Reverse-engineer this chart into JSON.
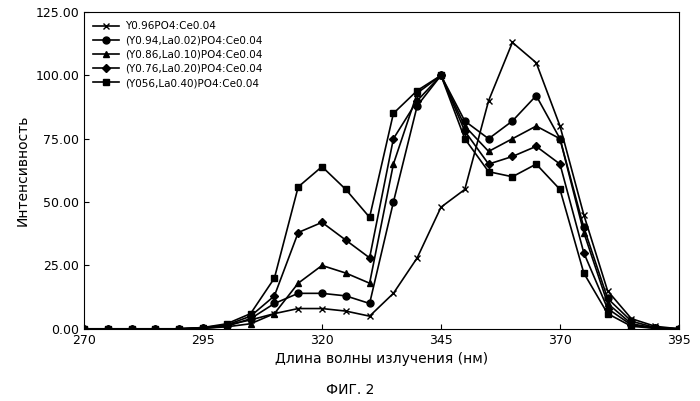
{
  "title": "ФИГ. 2",
  "xlabel": "Длина волны излучения (нм)",
  "ylabel": "Интенсивность",
  "xlim": [
    270,
    395
  ],
  "ylim": [
    0,
    125
  ],
  "yticks": [
    0,
    25.0,
    50.0,
    75.0,
    100.0,
    125.0
  ],
  "xticks": [
    270,
    295,
    320,
    345,
    370,
    395
  ],
  "series": [
    {
      "label": "Y0.96PO4:Ce0.04",
      "marker": "x",
      "color": "#000000",
      "linewidth": 1.2,
      "markersize": 5,
      "x": [
        270,
        275,
        280,
        285,
        290,
        295,
        300,
        305,
        310,
        315,
        320,
        325,
        330,
        335,
        340,
        345,
        350,
        355,
        360,
        365,
        370,
        375,
        380,
        385,
        390,
        395
      ],
      "y": [
        0,
        0,
        0,
        0,
        0,
        0.5,
        1.5,
        3.5,
        6,
        8,
        8,
        7,
        5,
        14,
        28,
        48,
        55,
        90,
        113,
        105,
        80,
        45,
        15,
        4,
        1,
        0
      ]
    },
    {
      "label": "(Y0.94,La0.02)PO4:Ce0.04",
      "marker": "o",
      "color": "#000000",
      "linewidth": 1.2,
      "markersize": 5,
      "x": [
        270,
        275,
        280,
        285,
        290,
        295,
        300,
        305,
        310,
        315,
        320,
        325,
        330,
        335,
        340,
        345,
        350,
        355,
        360,
        365,
        370,
        375,
        380,
        385,
        390,
        395
      ],
      "y": [
        0,
        0,
        0,
        0,
        0,
        0.2,
        1,
        4,
        10,
        14,
        14,
        13,
        10,
        50,
        88,
        100,
        82,
        75,
        82,
        92,
        75,
        40,
        12,
        3,
        0.5,
        0
      ]
    },
    {
      "label": "(Y0.86,La0.10)PO4:Ce0.04",
      "marker": "^",
      "color": "#000000",
      "linewidth": 1.2,
      "markersize": 5,
      "x": [
        270,
        275,
        280,
        285,
        290,
        295,
        300,
        305,
        310,
        315,
        320,
        325,
        330,
        335,
        340,
        345,
        350,
        355,
        360,
        365,
        370,
        375,
        380,
        385,
        390,
        395
      ],
      "y": [
        0,
        0,
        0,
        0,
        0,
        0.2,
        0.8,
        2,
        6,
        18,
        25,
        22,
        18,
        65,
        93,
        100,
        80,
        70,
        75,
        80,
        75,
        38,
        10,
        2,
        0.3,
        0
      ]
    },
    {
      "label": "(Y0.76,La0.20)PO4:Ce0.04",
      "marker": "D",
      "color": "#000000",
      "linewidth": 1.2,
      "markersize": 4,
      "x": [
        270,
        275,
        280,
        285,
        290,
        295,
        300,
        305,
        310,
        315,
        320,
        325,
        330,
        335,
        340,
        345,
        350,
        355,
        360,
        365,
        370,
        375,
        380,
        385,
        390,
        395
      ],
      "y": [
        0,
        0,
        0,
        0,
        0,
        0.3,
        1.5,
        5,
        13,
        38,
        42,
        35,
        28,
        75,
        90,
        100,
        78,
        65,
        68,
        72,
        65,
        30,
        8,
        1.5,
        0.2,
        0
      ]
    },
    {
      "label": "(Y056,La0.40)PO4:Ce0.04",
      "marker": "s",
      "color": "#000000",
      "linewidth": 1.2,
      "markersize": 5,
      "x": [
        270,
        275,
        280,
        285,
        290,
        295,
        300,
        305,
        310,
        315,
        320,
        325,
        330,
        335,
        340,
        345,
        350,
        355,
        360,
        365,
        370,
        375,
        380,
        385,
        390,
        395
      ],
      "y": [
        0,
        0,
        0,
        0,
        0,
        0.5,
        2,
        6,
        20,
        56,
        64,
        55,
        44,
        85,
        94,
        100,
        75,
        62,
        60,
        65,
        55,
        22,
        6,
        1,
        0.2,
        0
      ]
    }
  ]
}
